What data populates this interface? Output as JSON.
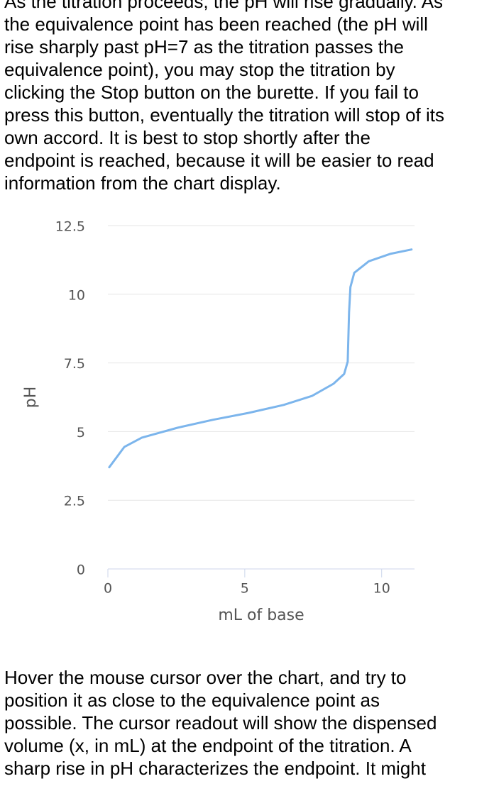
{
  "intro": [
    "As the titration proceeds, the pH will rise gradually. As",
    "the equivalence point has been reached (the pH will",
    "rise sharply past pH=7 as the titration passes the",
    "equivalence point), you may stop the titration by",
    "clicking the Stop button on the burette. If you fail to",
    "press this button, eventually the titration will stop of its",
    "own accord. It is best to stop shortly after the",
    "endpoint is reached, because it will be easier to read",
    "information from the chart display."
  ],
  "chart_data": {
    "type": "line",
    "x_label": "mL of base",
    "y_label": "pH",
    "x": [
      0.05,
      0.6,
      1.24,
      2.54,
      3.83,
      5.13,
      6.42,
      7.46,
      8.24,
      8.63,
      8.76,
      8.81,
      8.86,
      9.0,
      9.53,
      10.31,
      11.09
    ],
    "values": [
      3.7,
      4.44,
      4.78,
      5.14,
      5.43,
      5.68,
      5.97,
      6.3,
      6.74,
      7.1,
      7.55,
      9.35,
      10.26,
      10.78,
      11.2,
      11.47,
      11.63
    ],
    "color": "#7cb5ec",
    "xlim": [
      0,
      11.2
    ],
    "xticks": [
      0,
      5,
      10
    ],
    "ylim": [
      0,
      12.5
    ],
    "yticks": [
      0,
      2.5,
      5,
      7.5,
      10,
      12.5
    ],
    "grid": true
  },
  "outro": [
    "Hover the mouse cursor over the chart, and try to",
    "position it as close to the equivalence point as",
    "possible. The cursor readout will show the dispensed",
    "volume (x, in mL) at the endpoint of the titration. A",
    "sharp rise in pH characterizes the endpoint. It might"
  ]
}
